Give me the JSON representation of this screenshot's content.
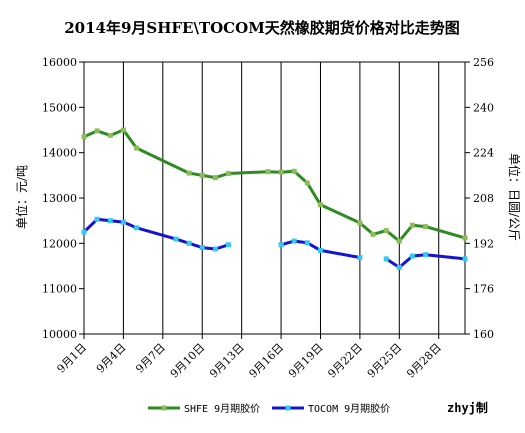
{
  "chart_data": {
    "type": "line",
    "title": "2014年9月SHFE\\TOCOM天然橡胶期货价格对比走势图",
    "ylabel_left": "单位：元/吨",
    "ylabel_right": "单位：日圆/公斤",
    "ylim_left": [
      10000,
      16000
    ],
    "yticks_left": [
      10000,
      11000,
      12000,
      13000,
      14000,
      15000,
      16000
    ],
    "ylim_right": [
      160,
      256
    ],
    "yticks_right": [
      160,
      176,
      192,
      208,
      224,
      240,
      256
    ],
    "xdomain": [
      1,
      30
    ],
    "xticks": [
      1,
      4,
      7,
      10,
      13,
      16,
      19,
      22,
      25,
      28
    ],
    "xtick_labels": [
      "9月1日",
      "9月4日",
      "9月7日",
      "9月10日",
      "9月13日",
      "9月16日",
      "9月19日",
      "9月22日",
      "9月25日",
      "9月28日"
    ],
    "grid": "vertical",
    "series": [
      {
        "name": "SHFE 9月期胶价",
        "axis": "left",
        "color": "#2e8b22",
        "marker_color": "#8fbc5a",
        "segments": [
          [
            [
              1,
              14350
            ],
            [
              2,
              14480
            ],
            [
              3,
              14380
            ],
            [
              4,
              14500
            ],
            [
              5,
              14100
            ],
            [
              9,
              13550
            ],
            [
              10,
              13500
            ],
            [
              11,
              13450
            ],
            [
              12,
              13540
            ],
            [
              15,
              13580
            ],
            [
              16,
              13570
            ],
            [
              17,
              13590
            ],
            [
              18,
              13330
            ],
            [
              19,
              12850
            ],
            [
              22,
              12450
            ],
            [
              23,
              12200
            ],
            [
              24,
              12280
            ],
            [
              25,
              12050
            ],
            [
              26,
              12400
            ],
            [
              27,
              12370
            ],
            [
              30,
              12120
            ]
          ]
        ]
      },
      {
        "name": "TOCOM 9月期胶价",
        "axis": "right",
        "color": "#1414d2",
        "marker_color": "#33c8f0",
        "segments": [
          [
            [
              1,
              196
            ],
            [
              2,
              200.5
            ],
            [
              3,
              200
            ],
            [
              4,
              199.5
            ],
            [
              5,
              197.5
            ],
            [
              8,
              193.5
            ],
            [
              9,
              192
            ],
            [
              10,
              190.5
            ],
            [
              11,
              190
            ],
            [
              12,
              191.5
            ]
          ],
          [
            [
              16,
              191.5
            ],
            [
              17,
              192.8
            ],
            [
              18,
              192.2
            ],
            [
              19,
              189.5
            ],
            [
              22,
              187
            ]
          ],
          [
            [
              24,
              186.5
            ],
            [
              25,
              183.5
            ],
            [
              26,
              187.5
            ],
            [
              27,
              188
            ],
            [
              30,
              186.5
            ]
          ]
        ]
      }
    ],
    "legend": {
      "position": "bottom",
      "items": [
        "SHFE 9月期胶价",
        "TOCOM 9月期胶价"
      ]
    },
    "credit": "zhyj制"
  }
}
